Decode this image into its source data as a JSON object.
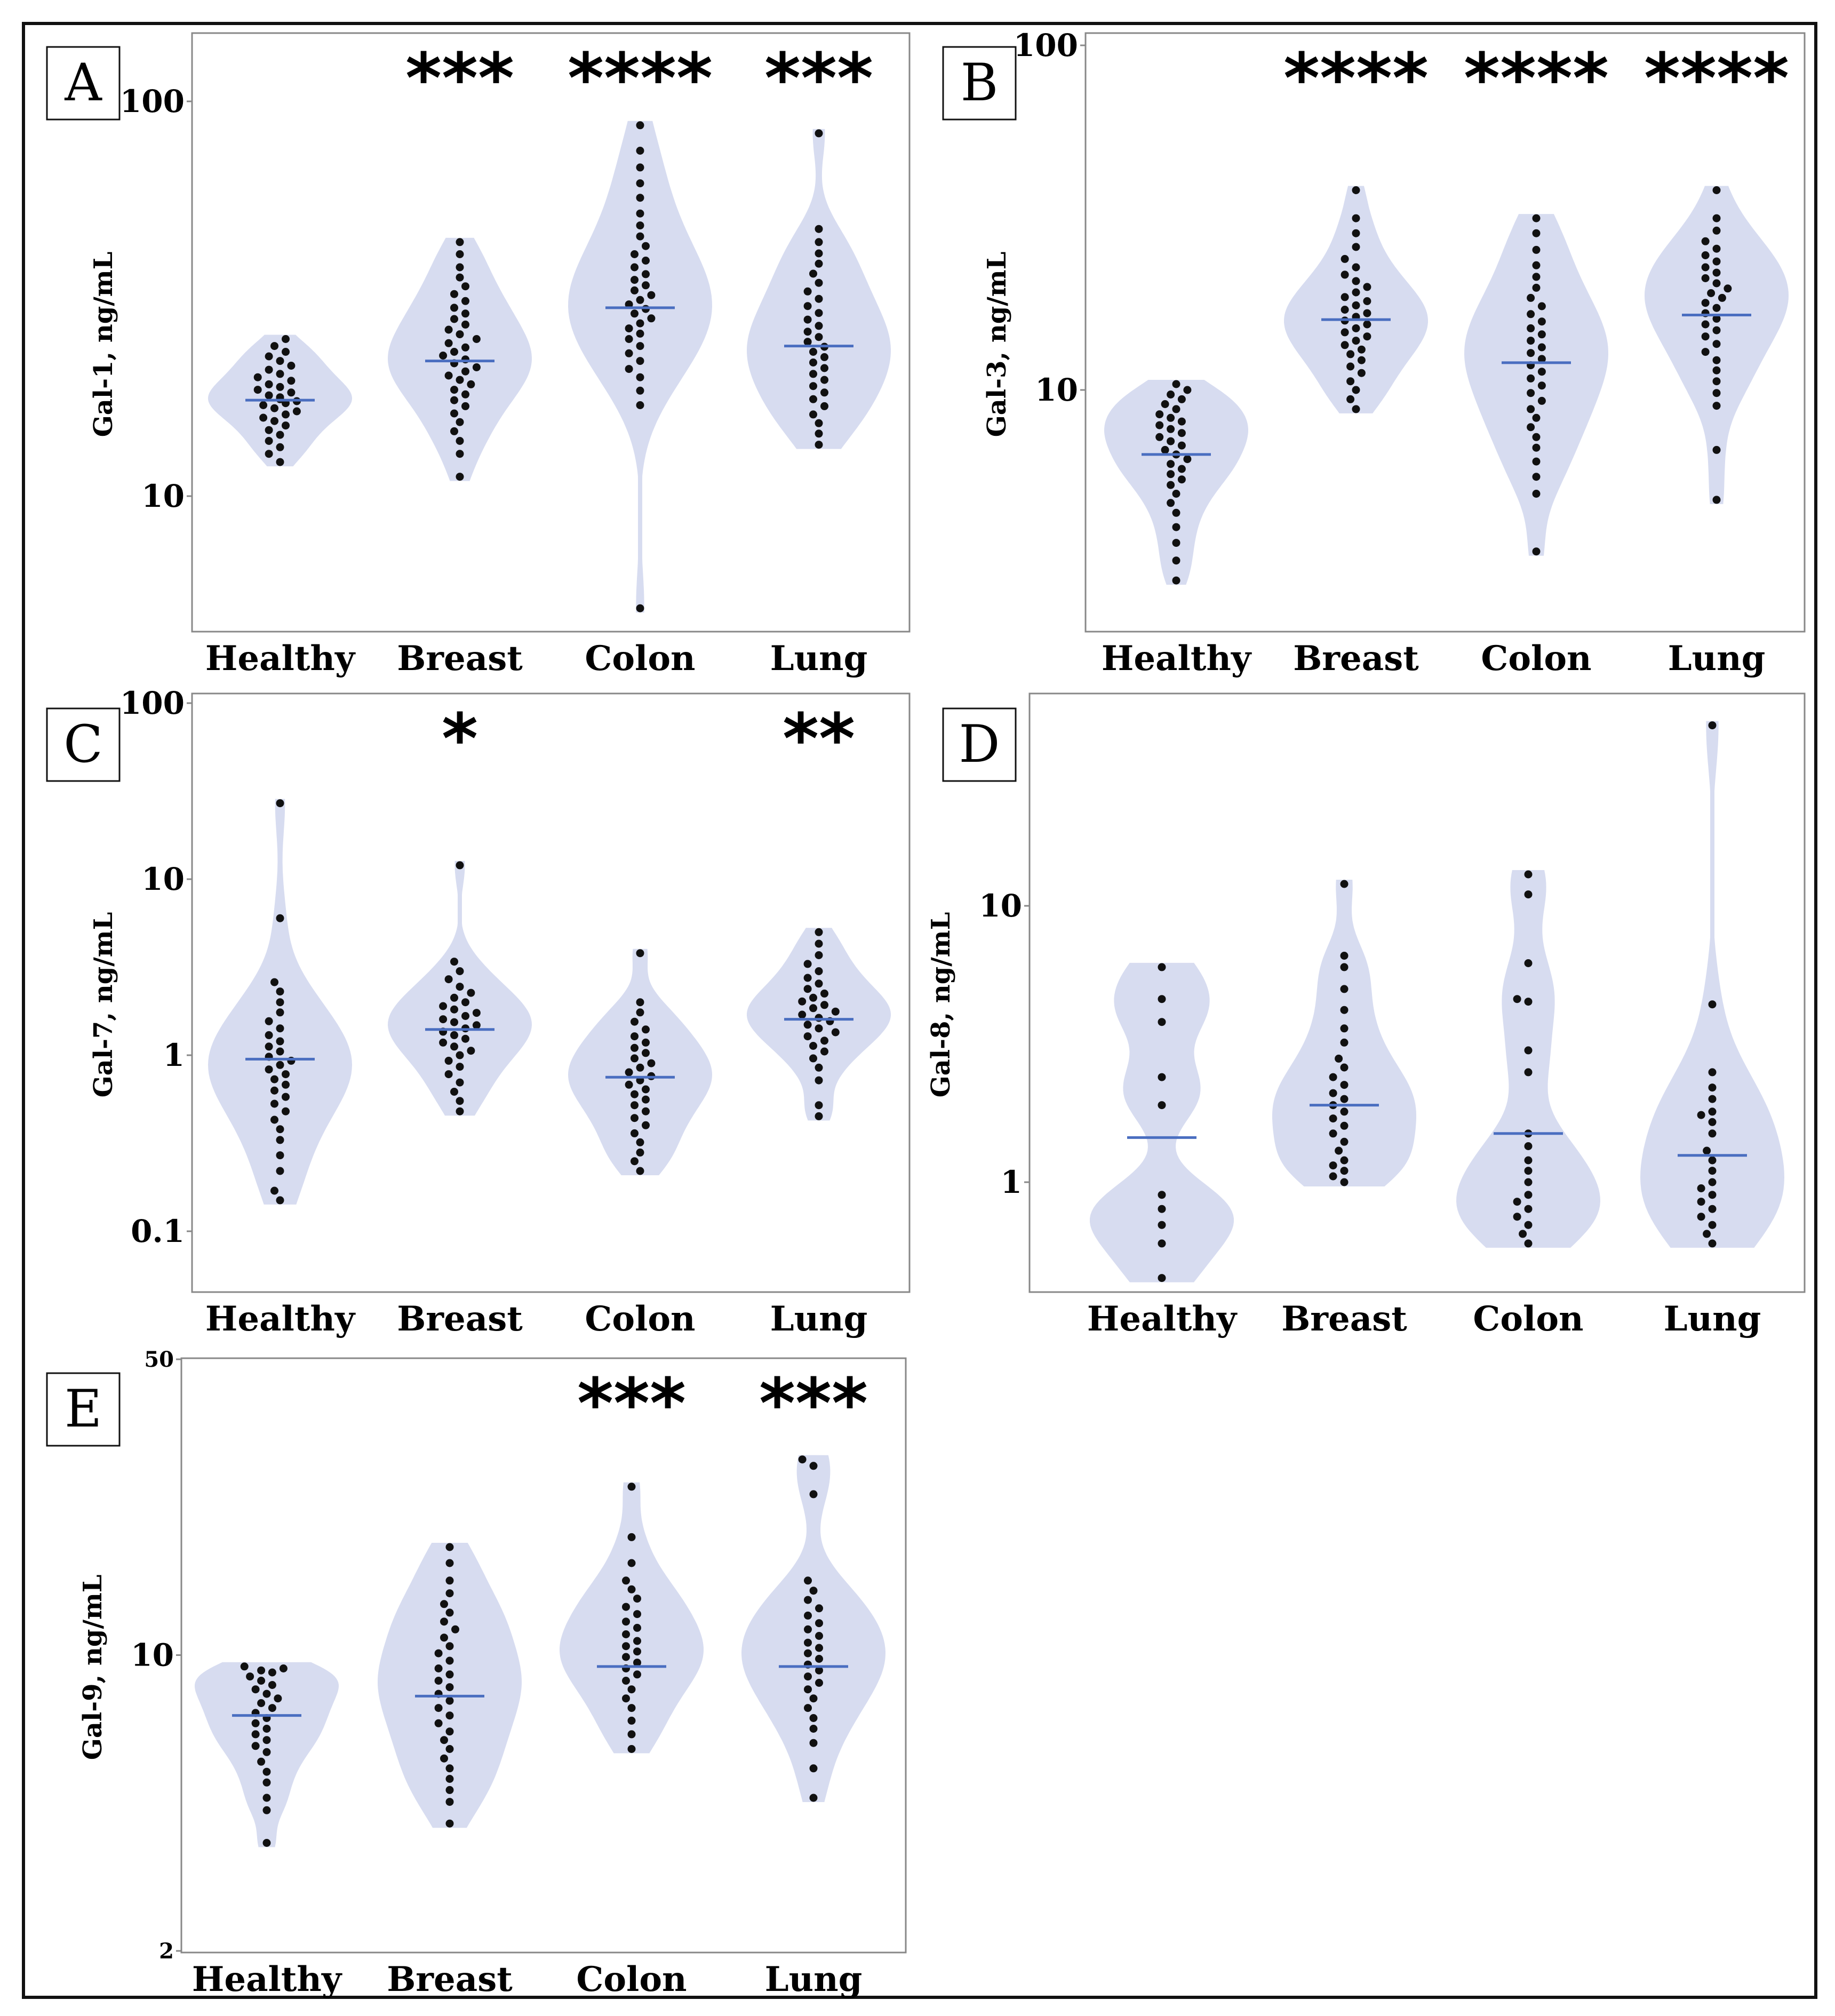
{
  "figure": {
    "description": "Multi-panel violin plot figure of galectin serum levels",
    "colors": {
      "violin": "#d7dcf0",
      "median": "#4a6ec0",
      "dot": "#111111",
      "frame": "#888888",
      "border": "#111111"
    }
  },
  "chart_data": [
    {
      "panel": "A",
      "type": "violin",
      "ylabel": "Gal-1, ng/mL",
      "yscale": "log",
      "ylim": [
        4.5,
        160
      ],
      "yticks": [
        "100",
        "10"
      ],
      "categories": [
        "Healthy",
        "Breast",
        "Colon",
        "Lung"
      ],
      "significance": [
        "",
        "***",
        "****",
        "***"
      ],
      "series": [
        {
          "name": "Healthy",
          "median": 17.5,
          "values": [
            12.2,
            12.8,
            13.3,
            13.8,
            14.3,
            14.7,
            15.1,
            15.5,
            15.8,
            16.1,
            16.4,
            16.7,
            17.0,
            17.2,
            17.4,
            17.6,
            17.8,
            18.0,
            18.3,
            18.6,
            18.9,
            19.2,
            19.6,
            20.0,
            20.4,
            20.9,
            21.4,
            22.0,
            22.6,
            23.2,
            24.0,
            25.0
          ]
        },
        {
          "name": "Breast",
          "median": 22.0,
          "values": [
            11.2,
            12.8,
            13.8,
            14.6,
            15.4,
            16.2,
            16.9,
            17.5,
            18.1,
            18.6,
            19.2,
            19.7,
            20.2,
            20.7,
            21.2,
            21.7,
            22.2,
            22.7,
            23.2,
            23.8,
            24.4,
            25.0,
            25.7,
            26.4,
            27.2,
            28.1,
            29.0,
            30.0,
            31.2,
            32.5,
            34.0,
            35.8,
            38.0,
            41.0,
            44.0
          ]
        },
        {
          "name": "Colon",
          "median": 30.0,
          "values": [
            5.2,
            17.0,
            18.5,
            20.0,
            21.0,
            22.0,
            23.0,
            24.0,
            25.0,
            25.8,
            26.6,
            27.4,
            28.2,
            29.0,
            29.8,
            30.6,
            31.4,
            32.3,
            33.2,
            34.2,
            35.3,
            36.5,
            38.0,
            39.5,
            41.0,
            43.0,
            45.5,
            48.5,
            52.0,
            57.0,
            62.0,
            68.0,
            75.0,
            87.0
          ]
        },
        {
          "name": "Lung",
          "median": 24.0,
          "values": [
            13.5,
            14.4,
            15.3,
            16.1,
            16.9,
            17.6,
            18.3,
            19.0,
            19.7,
            20.4,
            21.1,
            21.8,
            22.5,
            23.2,
            23.9,
            24.6,
            25.3,
            26.1,
            27.0,
            28.0,
            29.1,
            30.3,
            31.6,
            33.0,
            34.7,
            36.6,
            38.8,
            41.2,
            44.0,
            47.5,
            83.0
          ]
        }
      ]
    },
    {
      "panel": "B",
      "type": "violin",
      "ylabel": "Gal-3, ng/mL",
      "yscale": "log",
      "ylim": [
        2.3,
        100
      ],
      "yticks": [
        "100",
        "10"
      ],
      "categories": [
        "Healthy",
        "Breast",
        "Colon",
        "Lung"
      ],
      "significance": [
        "",
        "****",
        "****",
        "****"
      ],
      "series": [
        {
          "name": "Healthy",
          "median": 6.5,
          "values": [
            2.8,
            3.2,
            3.6,
            4.0,
            4.4,
            4.7,
            5.0,
            5.3,
            5.5,
            5.7,
            5.9,
            6.1,
            6.3,
            6.5,
            6.7,
            6.9,
            7.1,
            7.3,
            7.5,
            7.7,
            7.9,
            8.1,
            8.3,
            8.5,
            8.8,
            9.1,
            9.4,
            9.7,
            10.0,
            10.4
          ]
        },
        {
          "name": "Breast",
          "median": 16.0,
          "values": [
            8.8,
            9.4,
            10.0,
            10.6,
            11.2,
            11.7,
            12.2,
            12.7,
            13.1,
            13.5,
            13.9,
            14.3,
            14.7,
            15.1,
            15.5,
            15.9,
            16.3,
            16.7,
            17.1,
            17.6,
            18.1,
            18.6,
            19.2,
            19.9,
            20.7,
            21.6,
            22.7,
            24.0,
            26.0,
            28.5,
            31.5,
            38.0
          ]
        },
        {
          "name": "Colon",
          "median": 12.0,
          "values": [
            3.4,
            5.0,
            5.6,
            6.2,
            6.8,
            7.3,
            7.8,
            8.3,
            8.8,
            9.3,
            9.8,
            10.3,
            10.8,
            11.3,
            11.8,
            12.3,
            12.8,
            13.3,
            13.9,
            14.5,
            15.1,
            15.8,
            16.6,
            17.5,
            18.5,
            19.8,
            21.3,
            23.0,
            25.5,
            28.5,
            31.5
          ]
        },
        {
          "name": "Lung",
          "median": 16.5,
          "values": [
            4.8,
            6.7,
            9.0,
            9.8,
            10.6,
            11.4,
            12.2,
            12.9,
            13.6,
            14.3,
            14.9,
            15.5,
            16.1,
            16.7,
            17.3,
            17.9,
            18.5,
            19.1,
            19.7,
            20.4,
            21.1,
            21.9,
            22.7,
            23.6,
            24.6,
            25.7,
            27.0,
            29.0,
            31.5,
            38.0
          ]
        }
      ]
    },
    {
      "panel": "C",
      "type": "violin",
      "ylabel": "Gal-7, ng/mL",
      "yscale": "log",
      "ylim": [
        0.066,
        100
      ],
      "yticks": [
        "100",
        "10",
        "1",
        "0.1"
      ],
      "categories": [
        "Healthy",
        "Breast",
        "Colon",
        "Lung"
      ],
      "significance": [
        "",
        "*",
        "",
        "**"
      ],
      "series": [
        {
          "name": "Healthy",
          "median": 0.95,
          "values": [
            0.15,
            0.17,
            0.22,
            0.27,
            0.33,
            0.38,
            0.43,
            0.48,
            0.53,
            0.58,
            0.63,
            0.68,
            0.73,
            0.78,
            0.83,
            0.88,
            0.93,
            0.98,
            1.05,
            1.12,
            1.2,
            1.3,
            1.42,
            1.56,
            1.75,
            2.0,
            2.3,
            2.6,
            6.0,
            27.0
          ]
        },
        {
          "name": "Breast",
          "median": 1.4,
          "values": [
            0.48,
            0.55,
            0.62,
            0.7,
            0.78,
            0.86,
            0.93,
            1.0,
            1.06,
            1.12,
            1.18,
            1.24,
            1.3,
            1.36,
            1.42,
            1.48,
            1.54,
            1.6,
            1.67,
            1.74,
            1.82,
            1.9,
            2.0,
            2.12,
            2.26,
            2.45,
            2.7,
            3.0,
            3.4,
            12.0
          ]
        },
        {
          "name": "Colon",
          "median": 0.75,
          "values": [
            0.22,
            0.25,
            0.28,
            0.32,
            0.36,
            0.4,
            0.44,
            0.48,
            0.52,
            0.56,
            0.6,
            0.64,
            0.68,
            0.72,
            0.76,
            0.8,
            0.85,
            0.9,
            0.96,
            1.03,
            1.1,
            1.18,
            1.28,
            1.4,
            1.55,
            1.75,
            2.0,
            3.8
          ]
        },
        {
          "name": "Lung",
          "median": 1.6,
          "values": [
            0.45,
            0.52,
            0.72,
            0.85,
            0.96,
            1.05,
            1.13,
            1.21,
            1.28,
            1.35,
            1.42,
            1.49,
            1.56,
            1.63,
            1.7,
            1.77,
            1.85,
            1.93,
            2.02,
            2.12,
            2.24,
            2.38,
            2.55,
            2.75,
            3.0,
            3.3,
            3.7,
            4.3,
            5.0
          ]
        }
      ]
    },
    {
      "panel": "D",
      "type": "violin",
      "ylabel": "Gal-8, ng/mL",
      "yscale": "log",
      "ylim": [
        0.4,
        55
      ],
      "yticks": [
        "10",
        "1"
      ],
      "categories": [
        "Healthy",
        "Breast",
        "Colon",
        "Lung"
      ],
      "significance": [
        "",
        "",
        "",
        ""
      ],
      "series": [
        {
          "name": "Healthy",
          "median": 1.45,
          "values": [
            0.45,
            0.6,
            0.7,
            0.8,
            0.9,
            1.9,
            2.4,
            3.8,
            4.6,
            6.0
          ]
        },
        {
          "name": "Breast",
          "median": 1.9,
          "values": [
            1.0,
            1.05,
            1.1,
            1.15,
            1.2,
            1.3,
            1.4,
            1.5,
            1.6,
            1.7,
            1.8,
            1.9,
            2.0,
            2.1,
            2.25,
            2.4,
            2.6,
            2.8,
            3.2,
            3.6,
            4.2,
            5.0,
            6.0,
            6.6,
            12.0
          ]
        },
        {
          "name": "Colon",
          "median": 1.5,
          "values": [
            0.6,
            0.65,
            0.7,
            0.75,
            0.8,
            0.85,
            0.9,
            1.0,
            1.1,
            1.2,
            1.35,
            1.5,
            2.5,
            3.0,
            4.5,
            4.6,
            6.2,
            11.0,
            13.0
          ]
        },
        {
          "name": "Lung",
          "median": 1.25,
          "values": [
            0.6,
            0.65,
            0.7,
            0.75,
            0.8,
            0.85,
            0.9,
            0.95,
            1.0,
            1.1,
            1.2,
            1.3,
            1.5,
            1.65,
            1.75,
            1.8,
            2.0,
            2.2,
            2.5,
            4.4,
            45.0
          ]
        }
      ]
    },
    {
      "panel": "E",
      "type": "violin",
      "ylabel": "Gal-9, ng/mL",
      "yscale": "log",
      "ylim": [
        2,
        50
      ],
      "yticks": [
        "50",
        "10",
        "2"
      ],
      "categories": [
        "Healthy",
        "Breast",
        "Colon",
        "Lung"
      ],
      "significance": [
        "",
        "",
        "***",
        "***"
      ],
      "series": [
        {
          "name": "Healthy",
          "median": 7.2,
          "values": [
            3.6,
            4.3,
            4.6,
            5.0,
            5.3,
            5.6,
            5.9,
            6.1,
            6.3,
            6.5,
            6.7,
            6.9,
            7.1,
            7.3,
            7.5,
            7.7,
            7.9,
            8.1,
            8.3,
            8.5,
            8.7,
            8.9,
            9.1,
            9.2,
            9.3,
            9.4
          ]
        },
        {
          "name": "Breast",
          "median": 8.0,
          "values": [
            4.0,
            4.5,
            4.8,
            5.1,
            5.4,
            5.7,
            6.0,
            6.3,
            6.6,
            6.9,
            7.2,
            7.5,
            7.8,
            8.1,
            8.4,
            8.7,
            9.0,
            9.3,
            9.7,
            10.1,
            10.5,
            11.0,
            11.5,
            12.0,
            12.6,
            13.2,
            14.0,
            15.0,
            16.5,
            18.0
          ]
        },
        {
          "name": "Colon",
          "median": 9.4,
          "values": [
            6.0,
            6.5,
            7.0,
            7.5,
            7.9,
            8.3,
            8.7,
            9.0,
            9.3,
            9.6,
            9.9,
            10.2,
            10.5,
            10.8,
            11.2,
            11.6,
            12.0,
            12.5,
            13.0,
            13.6,
            14.3,
            15.0,
            16.5,
            19.0,
            25.0
          ]
        },
        {
          "name": "Lung",
          "median": 9.4,
          "values": [
            4.6,
            5.4,
            6.2,
            6.7,
            7.1,
            7.5,
            7.9,
            8.3,
            8.6,
            8.9,
            9.2,
            9.5,
            9.8,
            10.1,
            10.4,
            10.7,
            11.1,
            11.5,
            11.9,
            12.4,
            12.9,
            13.5,
            14.2,
            15.0,
            24.0,
            28.0,
            29.0
          ]
        }
      ]
    }
  ]
}
